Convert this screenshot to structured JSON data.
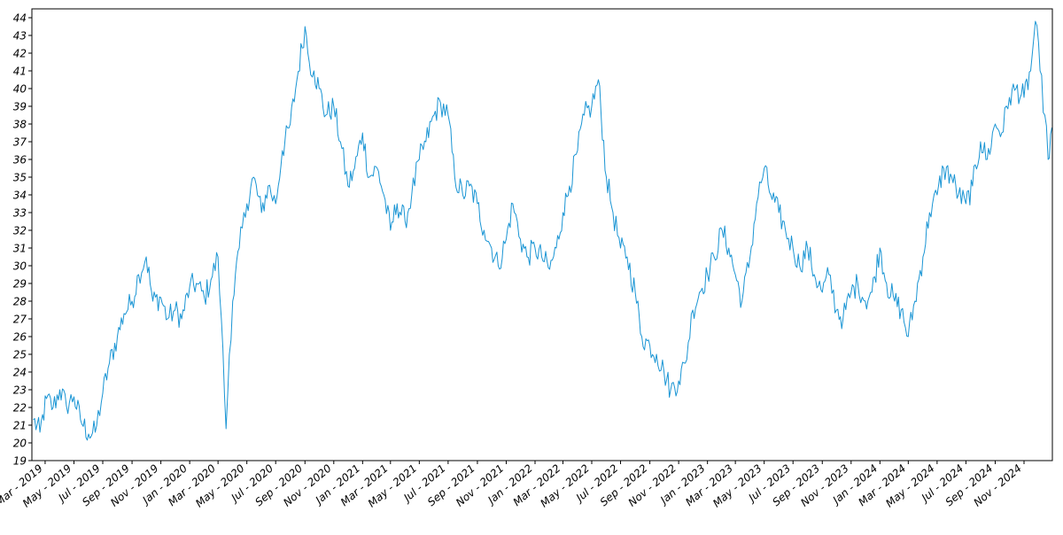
{
  "chart_data": {
    "type": "line",
    "title": "",
    "xlabel": "",
    "ylabel": "",
    "ylim": [
      19,
      44.5
    ],
    "xlim": [
      "2019-02-01",
      "2024-12-31"
    ],
    "grid": false,
    "legend": "none",
    "line_color": "#1a95d4",
    "y_ticks": [
      19,
      20,
      21,
      22,
      23,
      24,
      25,
      26,
      27,
      28,
      29,
      30,
      31,
      32,
      33,
      34,
      35,
      36,
      37,
      38,
      39,
      40,
      41,
      42,
      43,
      44
    ],
    "x_ticks": [
      {
        "date": "2019-03-01",
        "label": "Mar - 2019"
      },
      {
        "date": "2019-05-01",
        "label": "May - 2019"
      },
      {
        "date": "2019-07-01",
        "label": "Jul - 2019"
      },
      {
        "date": "2019-09-01",
        "label": "Sep - 2019"
      },
      {
        "date": "2019-11-01",
        "label": "Nov - 2019"
      },
      {
        "date": "2020-01-01",
        "label": "Jan - 2020"
      },
      {
        "date": "2020-03-01",
        "label": "Mar - 2020"
      },
      {
        "date": "2020-05-01",
        "label": "May - 2020"
      },
      {
        "date": "2020-07-01",
        "label": "Jul - 2020"
      },
      {
        "date": "2020-09-01",
        "label": "Sep - 2020"
      },
      {
        "date": "2020-11-01",
        "label": "Nov - 2020"
      },
      {
        "date": "2021-01-01",
        "label": "Jan - 2021"
      },
      {
        "date": "2021-03-01",
        "label": "Mar - 2021"
      },
      {
        "date": "2021-05-01",
        "label": "May - 2021"
      },
      {
        "date": "2021-07-01",
        "label": "Jul - 2021"
      },
      {
        "date": "2021-09-01",
        "label": "Sep - 2021"
      },
      {
        "date": "2021-11-01",
        "label": "Nov - 2021"
      },
      {
        "date": "2022-01-01",
        "label": "Jan - 2022"
      },
      {
        "date": "2022-03-01",
        "label": "Mar - 2022"
      },
      {
        "date": "2022-05-01",
        "label": "May - 2022"
      },
      {
        "date": "2022-07-01",
        "label": "Jul - 2022"
      },
      {
        "date": "2022-09-01",
        "label": "Sep - 2022"
      },
      {
        "date": "2022-11-01",
        "label": "Nov - 2022"
      },
      {
        "date": "2023-01-01",
        "label": "Jan - 2023"
      },
      {
        "date": "2023-03-01",
        "label": "Mar - 2023"
      },
      {
        "date": "2023-05-01",
        "label": "May - 2023"
      },
      {
        "date": "2023-07-01",
        "label": "Jul - 2023"
      },
      {
        "date": "2023-09-01",
        "label": "Sep - 2023"
      },
      {
        "date": "2023-11-01",
        "label": "Nov - 2023"
      },
      {
        "date": "2024-01-01",
        "label": "Jan - 2024"
      },
      {
        "date": "2024-03-01",
        "label": "Mar - 2024"
      },
      {
        "date": "2024-05-01",
        "label": "May - 2024"
      },
      {
        "date": "2024-07-01",
        "label": "Jul - 2024"
      },
      {
        "date": "2024-09-01",
        "label": "Sep - 2024"
      },
      {
        "date": "2024-11-01",
        "label": "Nov - 2024"
      }
    ],
    "series": [
      {
        "x": [
          "2019-02-04",
          "2019-02-18",
          "2019-03-04",
          "2019-03-18",
          "2019-04-01",
          "2019-04-15",
          "2019-05-01",
          "2019-05-15",
          "2019-06-01",
          "2019-06-15",
          "2019-07-01",
          "2019-07-15",
          "2019-08-01",
          "2019-08-15",
          "2019-09-01",
          "2019-09-15",
          "2019-10-01",
          "2019-10-15",
          "2019-11-01",
          "2019-11-15",
          "2019-12-01",
          "2019-12-15",
          "2020-01-01",
          "2020-01-15",
          "2020-02-01",
          "2020-02-15",
          "2020-03-01",
          "2020-03-08",
          "2020-03-18",
          "2020-03-25",
          "2020-04-01",
          "2020-04-15",
          "2020-05-01",
          "2020-05-15",
          "2020-06-01",
          "2020-06-15",
          "2020-07-01",
          "2020-07-15",
          "2020-08-01",
          "2020-08-15",
          "2020-09-01",
          "2020-09-10",
          "2020-09-20",
          "2020-10-01",
          "2020-10-15",
          "2020-11-01",
          "2020-11-15",
          "2020-12-01",
          "2020-12-15",
          "2021-01-01",
          "2021-01-15",
          "2021-02-01",
          "2021-02-15",
          "2021-03-01",
          "2021-03-15",
          "2021-04-01",
          "2021-04-15",
          "2021-05-01",
          "2021-05-15",
          "2021-06-01",
          "2021-06-15",
          "2021-07-01",
          "2021-07-15",
          "2021-08-01",
          "2021-08-15",
          "2021-09-01",
          "2021-09-15",
          "2021-10-01",
          "2021-10-15",
          "2021-11-01",
          "2021-11-15",
          "2021-12-01",
          "2021-12-15",
          "2022-01-01",
          "2022-01-15",
          "2022-02-01",
          "2022-02-15",
          "2022-03-01",
          "2022-03-15",
          "2022-04-01",
          "2022-04-15",
          "2022-05-01",
          "2022-05-15",
          "2022-06-01",
          "2022-06-15",
          "2022-07-01",
          "2022-07-15",
          "2022-08-01",
          "2022-08-15",
          "2022-09-01",
          "2022-09-15",
          "2022-10-01",
          "2022-10-15",
          "2022-11-01",
          "2022-11-15",
          "2022-12-01",
          "2022-12-15",
          "2023-01-01",
          "2023-01-15",
          "2023-02-01",
          "2023-02-15",
          "2023-03-01",
          "2023-03-15",
          "2023-04-01",
          "2023-04-15",
          "2023-05-01",
          "2023-05-15",
          "2023-06-01",
          "2023-06-15",
          "2023-07-01",
          "2023-07-15",
          "2023-08-01",
          "2023-08-15",
          "2023-09-01",
          "2023-09-15",
          "2023-10-01",
          "2023-10-15",
          "2023-11-01",
          "2023-11-15",
          "2023-12-01",
          "2023-12-15",
          "2024-01-01",
          "2024-01-15",
          "2024-02-01",
          "2024-02-15",
          "2024-03-01",
          "2024-03-15",
          "2024-04-01",
          "2024-04-15",
          "2024-05-01",
          "2024-05-15",
          "2024-06-01",
          "2024-06-15",
          "2024-07-01",
          "2024-07-15",
          "2024-08-01",
          "2024-08-15",
          "2024-09-01",
          "2024-09-15",
          "2024-10-01",
          "2024-10-15",
          "2024-11-01",
          "2024-11-15",
          "2024-11-25",
          "2024-12-05",
          "2024-12-15",
          "2024-12-22",
          "2024-12-30"
        ],
        "values": [
          21.3,
          20.6,
          22.5,
          22.0,
          23.0,
          22.1,
          22.6,
          21.3,
          20.5,
          20.6,
          22.8,
          24.5,
          26.0,
          27.3,
          28.0,
          29.5,
          30.5,
          28.0,
          28.2,
          27.0,
          27.5,
          27.0,
          28.8,
          29.0,
          28.2,
          29.2,
          30.5,
          27.0,
          20.8,
          25.0,
          28.0,
          31.0,
          33.5,
          35.0,
          33.0,
          34.5,
          33.5,
          36.5,
          38.0,
          40.5,
          43.5,
          41.5,
          41.0,
          40.0,
          38.5,
          39.0,
          37.0,
          34.5,
          35.5,
          37.5,
          35.0,
          35.5,
          34.0,
          32.0,
          33.5,
          32.5,
          34.0,
          36.0,
          37.0,
          38.5,
          39.2,
          38.5,
          35.0,
          34.0,
          34.5,
          33.5,
          32.0,
          31.0,
          30.0,
          31.5,
          33.5,
          31.5,
          30.5,
          31.0,
          30.5,
          29.8,
          31.0,
          33.0,
          34.5,
          36.5,
          38.5,
          39.0,
          40.5,
          35.0,
          33.0,
          31.0,
          30.5,
          28.5,
          26.0,
          25.5,
          25.0,
          24.0,
          23.0,
          23.5,
          24.5,
          27.5,
          28.5,
          29.5,
          30.5,
          32.0,
          31.0,
          29.5,
          28.0,
          30.5,
          33.5,
          35.5,
          34.0,
          33.0,
          32.0,
          31.0,
          30.0,
          31.0,
          29.5,
          28.5,
          29.5,
          27.5,
          27.0,
          28.5,
          29.0,
          28.0,
          28.5,
          31.0,
          29.0,
          28.0,
          27.5,
          26.0,
          28.0,
          30.5,
          33.0,
          34.0,
          35.5,
          35.0,
          34.0,
          33.5,
          34.5,
          37.0,
          36.0,
          38.0,
          37.5,
          39.5,
          40.0,
          39.5,
          41.0,
          43.8,
          41.0,
          38.5,
          36.0,
          37.8
        ]
      }
    ]
  }
}
